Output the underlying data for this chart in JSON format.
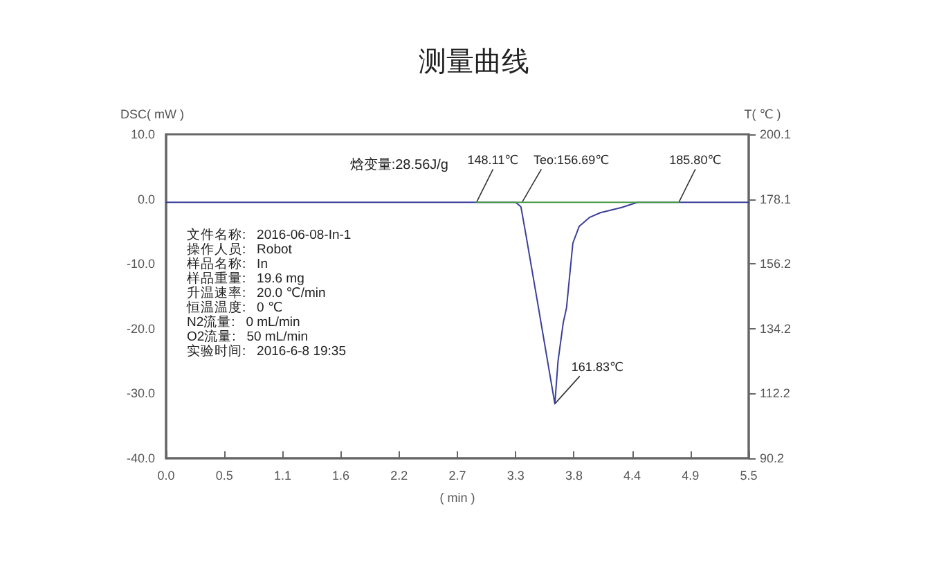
{
  "chart_data": {
    "type": "line",
    "title": "测量曲线",
    "xlabel": "( min )",
    "ylabel": "DSC( mW )",
    "y2label": "T( ℃ )",
    "xlim": [
      0,
      5.5
    ],
    "xticks": [
      {
        "value": 0,
        "label": "0.0"
      },
      {
        "value": 0.55,
        "label": "0.5"
      },
      {
        "value": 1.1,
        "label": "1.1"
      },
      {
        "value": 1.65,
        "label": "1.6"
      },
      {
        "value": 2.2,
        "label": "2.2"
      },
      {
        "value": 2.75,
        "label": "2.7"
      },
      {
        "value": 3.3,
        "label": "3.3"
      },
      {
        "value": 3.85,
        "label": "3.8"
      },
      {
        "value": 4.4,
        "label": "4.4"
      },
      {
        "value": 4.95,
        "label": "4.9"
      },
      {
        "value": 5.5,
        "label": "5.5"
      }
    ],
    "ylim": [
      -40,
      10
    ],
    "yticks": [
      {
        "value": -40,
        "label": "-40.0"
      },
      {
        "value": -30,
        "label": "-30.0"
      },
      {
        "value": -20,
        "label": "-20.0"
      },
      {
        "value": -10,
        "label": "-10.0"
      },
      {
        "value": 0,
        "label": "0.0"
      },
      {
        "value": 10,
        "label": "10.0"
      }
    ],
    "y2lim": [
      90.2,
      200.1
    ],
    "y2ticks": [
      90.2,
      112.2,
      134.2,
      156.2,
      178.1,
      200.1
    ],
    "grid": false,
    "marker": "none",
    "line_style": "solid",
    "series": [
      {
        "color": "#3a3f9a",
        "x": [
          0,
          1,
          2,
          3,
          3.3,
          3.35,
          3.4,
          3.5,
          3.6,
          3.67,
          3.7,
          3.75,
          3.78,
          3.84,
          3.9,
          4,
          4.1,
          4.3,
          4.45,
          5,
          5.5
        ],
        "values": [
          -0.5,
          -0.5,
          -0.5,
          -0.5,
          -0.5,
          -1.2,
          -5.8,
          -15.3,
          -24.9,
          -31.6,
          -25,
          -19,
          -16.8,
          -6.8,
          -4.2,
          -2.8,
          -2.1,
          -1.3,
          -0.5,
          -0.5,
          -0.5
        ]
      },
      {
        "color": "#4a9a4a",
        "x": [
          2.93,
          4.84
        ],
        "values": [
          -0.5,
          -0.5
        ]
      }
    ],
    "annotations": [
      "焓变量:28.56J/g",
      {
        "text": "148.11℃",
        "x": 2.93,
        "y": -0.5
      },
      {
        "text": "Teo:156.69℃",
        "x": 3.36,
        "y": -0.5
      },
      {
        "text": "185.80℃",
        "x": 4.84,
        "y": -0.5
      },
      {
        "text": "161.83℃",
        "x": 3.67,
        "y": -31.6
      },
      "文件名称:   2016-06-08-In-1",
      "操作人员:   Robot",
      "样品名称:   In",
      "样品重量:   19.6 mg",
      "升温速率:   20.0 ℃/min",
      "恒温温度:   0 ℃",
      "N2流量:   0 mL/min",
      "O2流量:   50 mL/min",
      "实验时间:   2016-6-8 19:35"
    ]
  }
}
